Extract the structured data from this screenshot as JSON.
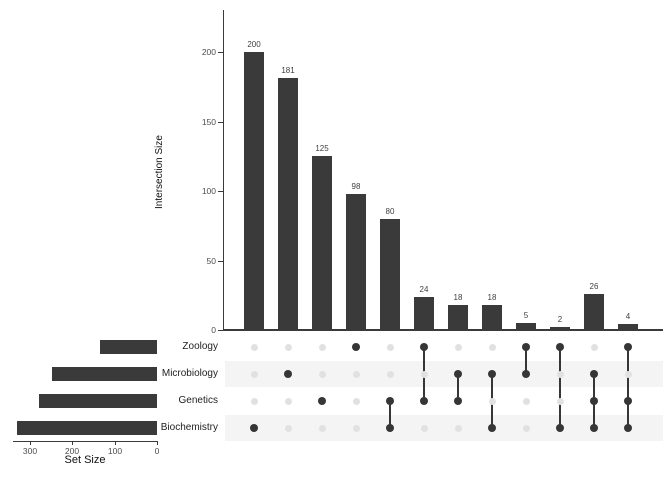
{
  "chart_data": {
    "type": "upset",
    "title": "",
    "intersection_axis": {
      "label": "Intersection Size",
      "ticks": [
        0,
        50,
        100,
        150,
        200
      ],
      "range": [
        0,
        230
      ]
    },
    "set_size_axis": {
      "label": "Set Size",
      "ticks": [
        300,
        200,
        100,
        0
      ],
      "range": [
        340,
        0
      ],
      "direction": "reversed"
    },
    "sets": [
      {
        "name": "Zoology",
        "size": 133
      },
      {
        "name": "Microbiology",
        "size": 248
      },
      {
        "name": "Genetics",
        "size": 277
      },
      {
        "name": "Biochemistry",
        "size": 330
      }
    ],
    "intersections": [
      {
        "value": 200,
        "sets": [
          "Biochemistry"
        ]
      },
      {
        "value": 181,
        "sets": [
          "Microbiology"
        ]
      },
      {
        "value": 125,
        "sets": [
          "Genetics"
        ]
      },
      {
        "value": 98,
        "sets": [
          "Zoology"
        ]
      },
      {
        "value": 80,
        "sets": [
          "Genetics",
          "Biochemistry"
        ]
      },
      {
        "value": 24,
        "sets": [
          "Zoology",
          "Genetics"
        ]
      },
      {
        "value": 18,
        "sets": [
          "Microbiology",
          "Genetics"
        ]
      },
      {
        "value": 18,
        "sets": [
          "Microbiology",
          "Biochemistry"
        ]
      },
      {
        "value": 5,
        "sets": [
          "Zoology",
          "Microbiology"
        ]
      },
      {
        "value": 2,
        "sets": [
          "Zoology",
          "Biochemistry"
        ]
      },
      {
        "value": 26,
        "sets": [
          "Microbiology",
          "Genetics",
          "Biochemistry"
        ]
      },
      {
        "value": 4,
        "sets": [
          "Zoology",
          "Genetics",
          "Biochemistry"
        ]
      }
    ],
    "legend": "none",
    "grid": "off",
    "colors": {
      "bar": "#3a3a3a",
      "dot_active": "#363636",
      "dot_inactive": "#e1e1e1",
      "stripe": "#f4f4f4",
      "axis": "#3a3a3a",
      "tick_label": "#4d4d4d",
      "value_label": "#404040",
      "background": "#ffffff"
    }
  }
}
